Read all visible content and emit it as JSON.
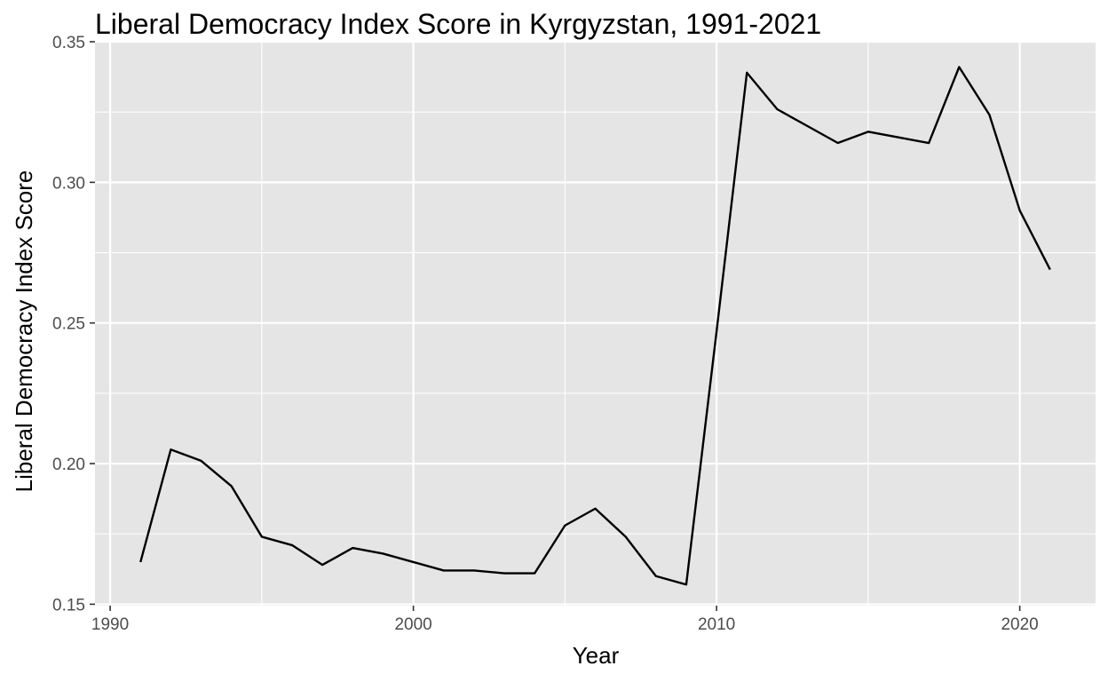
{
  "chart_data": {
    "type": "line",
    "title": "Liberal Democracy Index Score in Kyrgyzstan, 1991-2021",
    "xlabel": "Year",
    "ylabel": "Liberal Democracy Index Score",
    "xlim": [
      1989.5,
      2022.5
    ],
    "ylim": [
      0.1495,
      0.35
    ],
    "x_ticks": [
      1990,
      2000,
      2010,
      2020
    ],
    "x_tick_labels": [
      "1990",
      "2000",
      "2010",
      "2020"
    ],
    "y_ticks": [
      0.15,
      0.2,
      0.25,
      0.3,
      0.35
    ],
    "y_tick_labels": [
      "0.15",
      "0.20",
      "0.25",
      "0.30",
      "0.35"
    ],
    "grid": true,
    "legend": "none",
    "colors": {
      "panel": "#e5e5e5",
      "grid": "#ffffff",
      "line": "#000000"
    },
    "series": [
      {
        "x": [
          1991,
          1992,
          1993,
          1994,
          1995,
          1996,
          1997,
          1998,
          1999,
          2000,
          2001,
          2002,
          2003,
          2004,
          2005,
          2006,
          2007,
          2008,
          2009,
          2010,
          2011,
          2012,
          2013,
          2014,
          2015,
          2016,
          2017,
          2018,
          2019,
          2020,
          2021
        ],
        "values": [
          0.165,
          0.205,
          0.201,
          0.192,
          0.174,
          0.171,
          0.164,
          0.17,
          0.168,
          0.165,
          0.162,
          0.162,
          0.161,
          0.161,
          0.178,
          0.184,
          0.174,
          0.16,
          0.157,
          0.247,
          0.339,
          0.326,
          0.32,
          0.314,
          0.318,
          0.316,
          0.314,
          0.341,
          0.324,
          0.29,
          0.269
        ]
      }
    ]
  }
}
